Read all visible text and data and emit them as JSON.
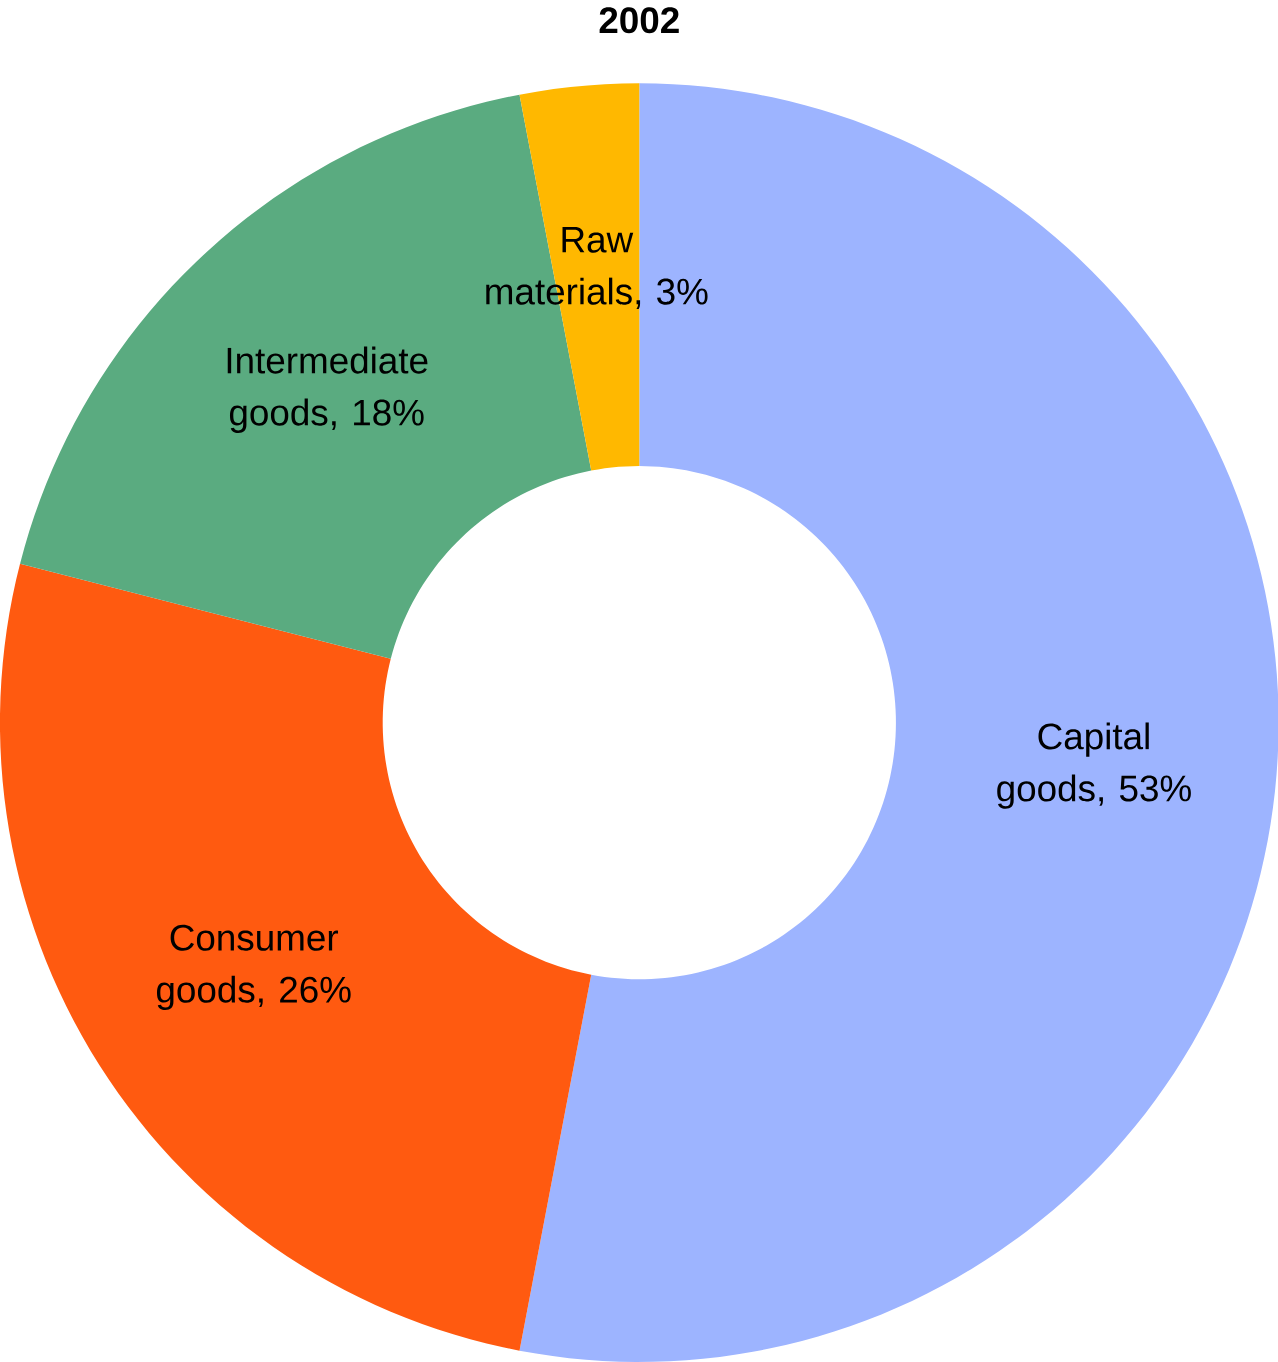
{
  "chart_data": {
    "type": "donut",
    "title": "2002",
    "categories": [
      "Capital goods, 53%",
      "Consumer goods, 26%",
      "Intermediate goods, 18%",
      "Raw materials, 3%"
    ],
    "values": [
      53,
      26,
      18,
      3
    ],
    "colors": [
      "#9db4ff",
      "#ff5a10",
      "#5aab80",
      "#ffb800"
    ]
  }
}
